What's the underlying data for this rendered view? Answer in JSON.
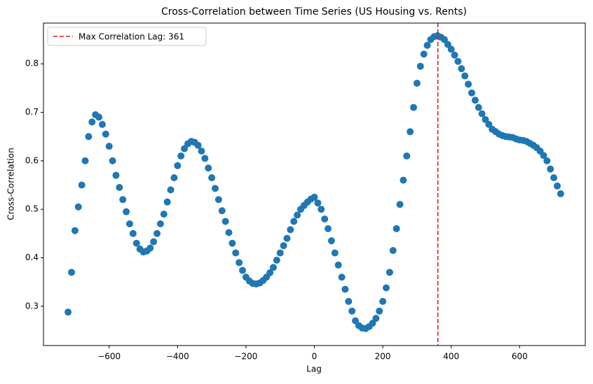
{
  "chart_data": {
    "type": "scatter",
    "title": "Cross-Correlation between Time Series (US Housing vs. Rents)",
    "xlabel": "Lag",
    "ylabel": "Cross-Correlation",
    "xlim": [
      -792,
      792
    ],
    "ylim": [
      0.219,
      0.884
    ],
    "xticks": [
      {
        "value": -600,
        "label": "−600"
      },
      {
        "value": -400,
        "label": "−400"
      },
      {
        "value": -200,
        "label": "−200"
      },
      0,
      200,
      400,
      600
    ],
    "yticks": [
      0.3,
      0.4,
      0.5,
      0.6,
      0.7,
      0.8
    ],
    "legend": "upper left",
    "vline": {
      "x": 361,
      "label": "Max Correlation Lag: 361",
      "color": "#e41a1c",
      "style": "dashed"
    },
    "series": [
      {
        "color": "#1f77b4",
        "x": [
          -720,
          -710,
          -700,
          -690,
          -680,
          -670,
          -660,
          -650,
          -640,
          -630,
          -620,
          -610,
          -600,
          -590,
          -580,
          -570,
          -560,
          -550,
          -540,
          -530,
          -520,
          -510,
          -500,
          -490,
          -480,
          -470,
          -460,
          -450,
          -440,
          -430,
          -420,
          -410,
          -400,
          -390,
          -380,
          -370,
          -360,
          -350,
          -340,
          -330,
          -320,
          -310,
          -300,
          -290,
          -280,
          -270,
          -260,
          -250,
          -240,
          -230,
          -220,
          -210,
          -200,
          -190,
          -180,
          -170,
          -160,
          -150,
          -140,
          -130,
          -120,
          -110,
          -100,
          -90,
          -80,
          -70,
          -60,
          -50,
          -40,
          -30,
          -20,
          -10,
          0,
          10,
          20,
          30,
          40,
          50,
          60,
          70,
          80,
          90,
          100,
          110,
          120,
          130,
          140,
          150,
          160,
          170,
          180,
          190,
          200,
          210,
          220,
          230,
          240,
          250,
          260,
          270,
          280,
          290,
          300,
          310,
          320,
          330,
          340,
          350,
          360,
          370,
          380,
          390,
          400,
          410,
          420,
          430,
          440,
          450,
          460,
          470,
          480,
          490,
          500,
          510,
          520,
          530,
          540,
          550,
          560,
          570,
          580,
          590,
          600,
          610,
          620,
          630,
          640,
          650,
          660,
          670,
          680,
          690,
          700,
          710,
          720
        ],
        "values": [
          0.288,
          0.37,
          0.456,
          0.505,
          0.55,
          0.6,
          0.65,
          0.68,
          0.695,
          0.69,
          0.675,
          0.655,
          0.63,
          0.6,
          0.57,
          0.545,
          0.52,
          0.495,
          0.47,
          0.45,
          0.43,
          0.418,
          0.412,
          0.414,
          0.42,
          0.433,
          0.45,
          0.47,
          0.49,
          0.515,
          0.54,
          0.565,
          0.59,
          0.61,
          0.625,
          0.635,
          0.64,
          0.638,
          0.632,
          0.62,
          0.605,
          0.585,
          0.565,
          0.543,
          0.52,
          0.497,
          0.475,
          0.452,
          0.43,
          0.41,
          0.39,
          0.374,
          0.36,
          0.352,
          0.347,
          0.346,
          0.348,
          0.353,
          0.36,
          0.369,
          0.38,
          0.395,
          0.41,
          0.425,
          0.44,
          0.458,
          0.475,
          0.488,
          0.5,
          0.508,
          0.515,
          0.521,
          0.525,
          0.513,
          0.5,
          0.48,
          0.46,
          0.435,
          0.41,
          0.385,
          0.36,
          0.335,
          0.31,
          0.29,
          0.27,
          0.26,
          0.255,
          0.254,
          0.258,
          0.265,
          0.275,
          0.29,
          0.31,
          0.338,
          0.37,
          0.415,
          0.46,
          0.51,
          0.56,
          0.61,
          0.66,
          0.71,
          0.76,
          0.795,
          0.82,
          0.838,
          0.85,
          0.856,
          0.858,
          0.855,
          0.85,
          0.84,
          0.83,
          0.818,
          0.805,
          0.79,
          0.775,
          0.758,
          0.74,
          0.725,
          0.71,
          0.697,
          0.685,
          0.675,
          0.665,
          0.66,
          0.655,
          0.652,
          0.65,
          0.649,
          0.648,
          0.645,
          0.643,
          0.642,
          0.64,
          0.636,
          0.632,
          0.627,
          0.62,
          0.611,
          0.6,
          0.583,
          0.565,
          0.548,
          0.532
        ]
      }
    ]
  }
}
